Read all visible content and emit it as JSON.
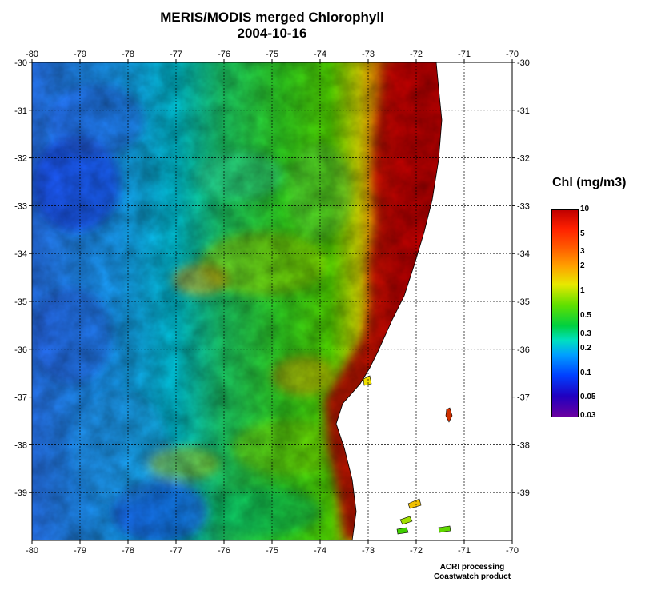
{
  "map": {
    "title": "MERIS/MODIS merged Chlorophyll",
    "date": "2004-10-16",
    "lon_ticks": [
      -80,
      -79,
      -78,
      -77,
      -76,
      -75,
      -74,
      -73,
      -72,
      -71,
      -70
    ],
    "lat_ticks": [
      -30,
      -31,
      -32,
      -33,
      -34,
      -35,
      -36,
      -37,
      -38,
      -39
    ],
    "lon_range": [
      -80,
      -70
    ],
    "lat_range": [
      -40,
      -30
    ],
    "grid": true
  },
  "colorbar": {
    "title": "Chl (mg/m3)",
    "labels": [
      "10",
      "5",
      "3",
      "2",
      "1",
      "0.5",
      "0.3",
      "0.2",
      "0.1",
      "0.05",
      "0.03"
    ],
    "scale": "log"
  },
  "credits": {
    "line1": "ACRI processing",
    "line2": "Coastwatch product"
  }
}
